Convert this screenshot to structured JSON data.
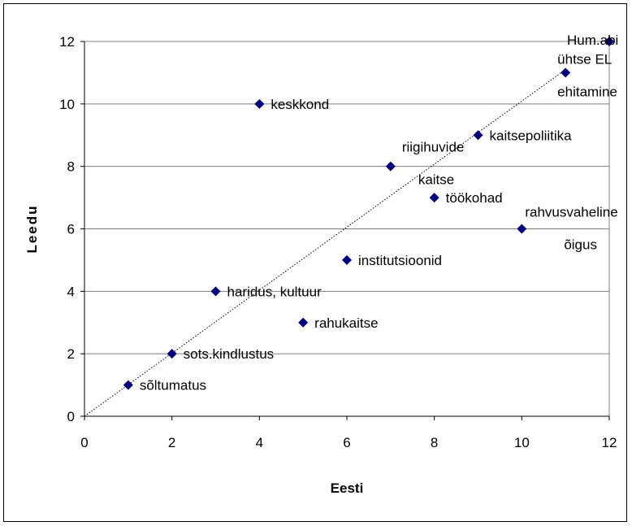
{
  "chart_data": {
    "type": "scatter",
    "title": "",
    "xlabel": "Eesti",
    "ylabel": "Leedu",
    "xlim": [
      0,
      12
    ],
    "ylim": [
      0,
      12
    ],
    "xticks": [
      0,
      2,
      4,
      6,
      8,
      10,
      12
    ],
    "yticks": [
      0,
      2,
      4,
      6,
      8,
      10,
      12
    ],
    "grid": "horizontal",
    "legend": "none",
    "marker": "diamond",
    "marker_color": "#000080",
    "trendline": {
      "style": "dotted",
      "from": [
        0,
        0
      ],
      "to": [
        11,
        11.1
      ]
    },
    "points": [
      {
        "x": 1,
        "y": 1,
        "label": [
          "sõltumatus"
        ]
      },
      {
        "x": 2,
        "y": 2,
        "label": [
          "sots.kindlustus"
        ]
      },
      {
        "x": 3,
        "y": 4,
        "label": [
          "haridus, kultuur"
        ]
      },
      {
        "x": 4,
        "y": 10,
        "label": [
          "keskkond"
        ]
      },
      {
        "x": 5,
        "y": 3,
        "label": [
          "rahukaitse"
        ]
      },
      {
        "x": 6,
        "y": 5,
        "label": [
          "institutsioonid"
        ]
      },
      {
        "x": 7,
        "y": 8,
        "label": [
          "riigihuvide",
          "kaitse"
        ]
      },
      {
        "x": 8,
        "y": 7,
        "label": [
          "töökohad"
        ]
      },
      {
        "x": 9,
        "y": 9,
        "label": [
          "kaitsepoliitika"
        ]
      },
      {
        "x": 10,
        "y": 6,
        "label": [
          "rahvusvaheline",
          "õigus"
        ]
      },
      {
        "x": 11,
        "y": 11,
        "label": [
          "ühtse EL",
          "ehitamine"
        ]
      },
      {
        "x": 12,
        "y": 12,
        "label": [
          "Hum.abi"
        ]
      }
    ]
  }
}
